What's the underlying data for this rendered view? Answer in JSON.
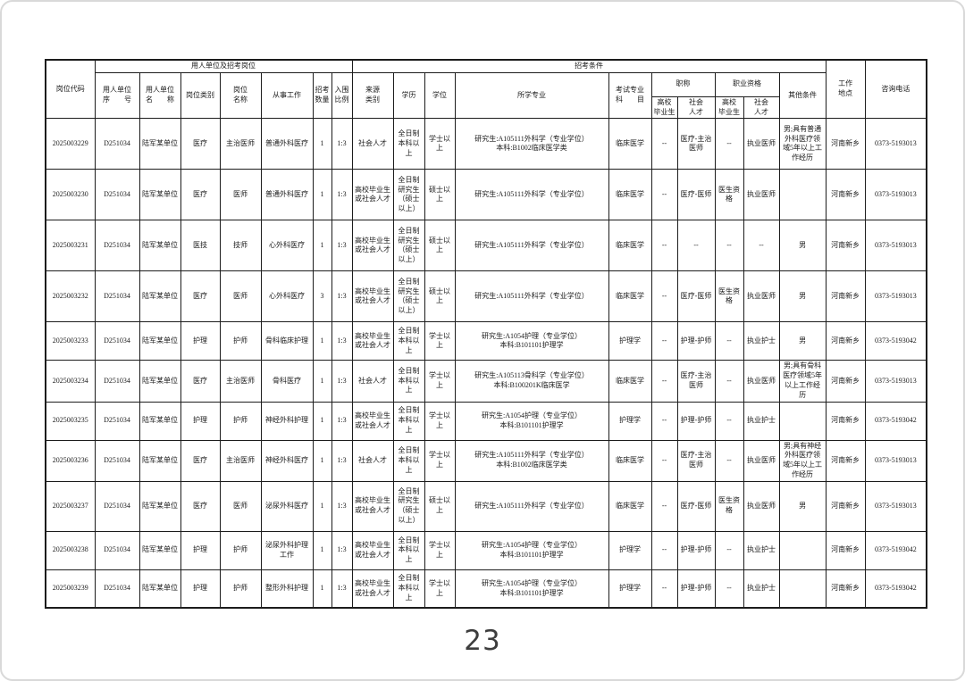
{
  "page": {
    "number": "23"
  },
  "table": {
    "header": {
      "job_code": "岗位代码",
      "group_employer": "用人单位及招考岗位",
      "group_conditions": "招考条件",
      "group_title": "职称",
      "group_qualification": "职业资格",
      "employer_no": "用人单位\n序　　号",
      "employer_name": "用人单位\n名　　称",
      "post_category": "岗位类别",
      "post_name": "岗位\n名称",
      "work_content": "从事工作",
      "recruit_count": "招考\n数量",
      "ratio": "入围\n比例",
      "source": "来源\n类别",
      "education": "学历",
      "degree": "学位",
      "major": "所学专业",
      "exam_subject": "考试专业\n科　　目",
      "grad": "高校\n毕业生",
      "social": "社会\n人才",
      "other": "其他条件",
      "location": "工作\n地点",
      "phone": "咨询电话"
    },
    "rows": [
      [
        "2025003229",
        "D251034",
        "陆军某单位",
        "医疗",
        "主治医师",
        "普通外科医疗",
        "1",
        "1:3",
        "社会人才",
        "全日制本科以上",
        "学士以上",
        "研究生:A105111外科学（专业学位）\n本科:B1002临床医学类",
        "临床医学",
        "--",
        "医疗-主治医师",
        "--",
        "执业医师",
        "男;具有普通外科医疗领域5年以上工作经历",
        "河南新乡",
        "0373-5193013"
      ],
      [
        "2025003230",
        "D251034",
        "陆军某单位",
        "医疗",
        "医师",
        "普通外科医疗",
        "1",
        "1:3",
        "高校毕业生或社会人才",
        "全日制研究生（硕士以上）",
        "硕士以上",
        "研究生:A105111外科学（专业学位）",
        "临床医学",
        "--",
        "医疗-医师",
        "医生资格",
        "执业医师",
        "",
        "河南新乡",
        "0373-5193013"
      ],
      [
        "2025003231",
        "D251034",
        "陆军某单位",
        "医技",
        "技师",
        "心外科医疗",
        "1",
        "1:3",
        "高校毕业生或社会人才",
        "全日制研究生（硕士以上）",
        "硕士以上",
        "研究生:A105111外科学（专业学位）",
        "临床医学",
        "--",
        "--",
        "--",
        "--",
        "男",
        "河南新乡",
        "0373-5193013"
      ],
      [
        "2025003232",
        "D251034",
        "陆军某单位",
        "医疗",
        "医师",
        "心外科医疗",
        "3",
        "1:3",
        "高校毕业生或社会人才",
        "全日制研究生（硕士以上）",
        "硕士以上",
        "研究生:A105111外科学（专业学位）",
        "临床医学",
        "--",
        "医疗-医师",
        "医生资格",
        "执业医师",
        "男",
        "河南新乡",
        "0373-5193013"
      ],
      [
        "2025003233",
        "D251034",
        "陆军某单位",
        "护理",
        "护师",
        "骨科临床护理",
        "1",
        "1:3",
        "高校毕业生或社会人才",
        "全日制本科以上",
        "学士以上",
        "研究生:A1054护理（专业学位）\n本科:B101101护理学",
        "护理学",
        "--",
        "护理-护师",
        "--",
        "执业护士",
        "男",
        "河南新乡",
        "0373-5193042"
      ],
      [
        "2025003234",
        "D251034",
        "陆军某单位",
        "医疗",
        "主治医师",
        "骨科医疗",
        "1",
        "1:3",
        "社会人才",
        "全日制本科以上",
        "学士以上",
        "研究生:A105113骨科学（专业学位）\n本科:B100201K临床医学",
        "临床医学",
        "--",
        "医疗-主治医师",
        "--",
        "执业医师",
        "男;具有骨科医疗领域5年以上工作经历",
        "河南新乡",
        "0373-5193013"
      ],
      [
        "2025003235",
        "D251034",
        "陆军某单位",
        "护理",
        "护师",
        "神经外科护理",
        "1",
        "1:3",
        "高校毕业生或社会人才",
        "全日制本科以上",
        "学士以上",
        "研究生:A1054护理（专业学位）\n本科:B101101护理学",
        "护理学",
        "--",
        "护理-护师",
        "--",
        "执业护士",
        "",
        "河南新乡",
        "0373-5193042"
      ],
      [
        "2025003236",
        "D251034",
        "陆军某单位",
        "医疗",
        "主治医师",
        "神经外科医疗",
        "1",
        "1:3",
        "社会人才",
        "全日制本科以上",
        "学士以上",
        "研究生:A105111外科学（专业学位）\n本科:B1002临床医学类",
        "临床医学",
        "--",
        "医疗-主治医师",
        "--",
        "执业医师",
        "男;具有神经外科医疗领域5年以上工作经历",
        "河南新乡",
        "0373-5193013"
      ],
      [
        "2025003237",
        "D251034",
        "陆军某单位",
        "医疗",
        "医师",
        "泌尿外科医疗",
        "1",
        "1:3",
        "高校毕业生或社会人才",
        "全日制研究生（硕士以上）",
        "硕士以上",
        "研究生:A105111外科学（专业学位）",
        "临床医学",
        "--",
        "医疗-医师",
        "医生资格",
        "执业医师",
        "男",
        "河南新乡",
        "0373-5193013"
      ],
      [
        "2025003238",
        "D251034",
        "陆军某单位",
        "护理",
        "护师",
        "泌尿外科护理工作",
        "1",
        "1:3",
        "高校毕业生或社会人才",
        "全日制本科以上",
        "学士以上",
        "研究生:A1054护理（专业学位）\n本科:B101101护理学",
        "护理学",
        "--",
        "护理-护师",
        "--",
        "执业护士",
        "",
        "河南新乡",
        "0373-5193042"
      ],
      [
        "2025003239",
        "D251034",
        "陆军某单位",
        "护理",
        "护师",
        "整形外科护理",
        "1",
        "1:3",
        "高校毕业生或社会人才",
        "全日制本科以上",
        "学士以上",
        "研究生:A1054护理（专业学位）\n本科:B101101护理学",
        "护理学",
        "--",
        "护理-护师",
        "--",
        "执业护士",
        "",
        "河南新乡",
        "0373-5193042"
      ]
    ]
  }
}
